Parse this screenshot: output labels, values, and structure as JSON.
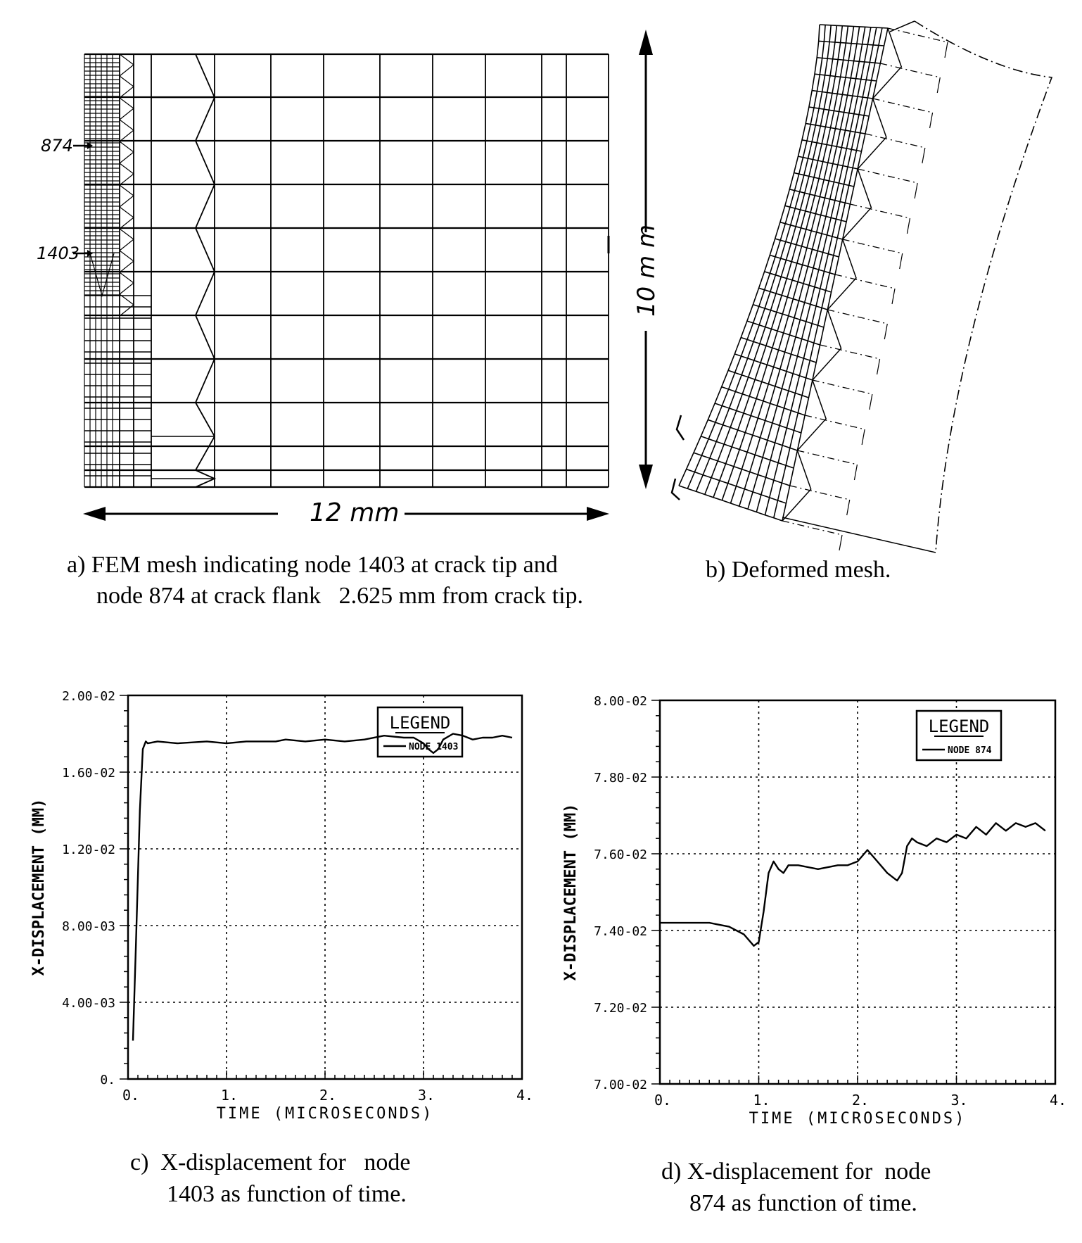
{
  "panel_a": {
    "node_labels": [
      "874",
      "1403"
    ],
    "dim_width": "12 mm",
    "dim_height": "10 m m",
    "caption_line1": "a) FEM mesh indicating node 1403 at crack tip and",
    "caption_line2": "node 874 at crack flank   2.625 mm from crack tip."
  },
  "panel_b": {
    "caption": "b) Deformed mesh."
  },
  "panel_c": {
    "caption_line1": "c)  X-displacement for   node",
    "caption_line2": "1403 as function of time."
  },
  "panel_d": {
    "caption_line1": "d) X-displacement for  node",
    "caption_line2": "874 as function of time."
  },
  "colors": {
    "ink": "#000000",
    "paper": "#ffffff"
  },
  "chart_data": [
    {
      "type": "line",
      "ylabel": "X-DISPLACEMENT (MM)",
      "xlabel": "TIME (MICROSECONDS)",
      "legend_title": "LEGEND",
      "legend_placement": "top-right",
      "grid": true,
      "xlim": [
        0,
        4
      ],
      "ylim": [
        0,
        0.02
      ],
      "x_ticks": [
        "0.",
        "1.",
        "2.",
        "3.",
        "4."
      ],
      "y_ticks": [
        "0.",
        "4.00-03",
        "8.00-03",
        "1.20-02",
        "1.60-02",
        "2.00-02"
      ],
      "series": [
        {
          "name": "NODE 1403",
          "x": [
            0.05,
            0.08,
            0.12,
            0.15,
            0.18,
            0.2,
            0.3,
            0.5,
            0.8,
            1.0,
            1.2,
            1.5,
            1.6,
            1.8,
            2.0,
            2.2,
            2.4,
            2.6,
            2.8,
            2.9,
            3.0,
            3.05,
            3.1,
            3.15,
            3.2,
            3.3,
            3.4,
            3.5,
            3.6,
            3.7,
            3.8,
            3.9
          ],
          "y": [
            0.002,
            0.007,
            0.014,
            0.0172,
            0.0176,
            0.0175,
            0.0176,
            0.0175,
            0.0176,
            0.0175,
            0.0176,
            0.0176,
            0.0177,
            0.0176,
            0.0177,
            0.0176,
            0.0177,
            0.0179,
            0.0178,
            0.0178,
            0.0175,
            0.0172,
            0.017,
            0.0172,
            0.0177,
            0.018,
            0.0179,
            0.0177,
            0.0178,
            0.0178,
            0.0179,
            0.0178
          ]
        }
      ]
    },
    {
      "type": "line",
      "ylabel": "X-DISPLACEMENT (MM)",
      "xlabel": "TIME (MICROSECONDS)",
      "legend_title": "LEGEND",
      "legend_placement": "top-right",
      "grid": true,
      "xlim": [
        0,
        4
      ],
      "ylim": [
        0.07,
        0.08
      ],
      "x_ticks": [
        "0.",
        "1.",
        "2.",
        "3.",
        "4."
      ],
      "y_ticks": [
        "7.00-02",
        "7.20-02",
        "7.40-02",
        "7.60-02",
        "7.80-02",
        "8.00-02"
      ],
      "series": [
        {
          "name": "NODE 874",
          "x": [
            0.0,
            0.3,
            0.5,
            0.7,
            0.85,
            0.95,
            1.0,
            1.05,
            1.1,
            1.15,
            1.2,
            1.25,
            1.3,
            1.4,
            1.6,
            1.8,
            1.9,
            2.0,
            2.1,
            2.2,
            2.3,
            2.4,
            2.45,
            2.5,
            2.55,
            2.6,
            2.7,
            2.8,
            2.9,
            3.0,
            3.1,
            3.2,
            3.3,
            3.4,
            3.5,
            3.6,
            3.7,
            3.8,
            3.9
          ],
          "y": [
            0.0742,
            0.0742,
            0.0742,
            0.0741,
            0.0739,
            0.0736,
            0.0737,
            0.0745,
            0.0755,
            0.0758,
            0.0756,
            0.0755,
            0.0757,
            0.0757,
            0.0756,
            0.0757,
            0.0757,
            0.0758,
            0.0761,
            0.0758,
            0.0755,
            0.0753,
            0.0755,
            0.0762,
            0.0764,
            0.0763,
            0.0762,
            0.0764,
            0.0763,
            0.0765,
            0.0764,
            0.0767,
            0.0765,
            0.0768,
            0.0766,
            0.0768,
            0.0767,
            0.0768,
            0.0766
          ]
        }
      ]
    }
  ]
}
